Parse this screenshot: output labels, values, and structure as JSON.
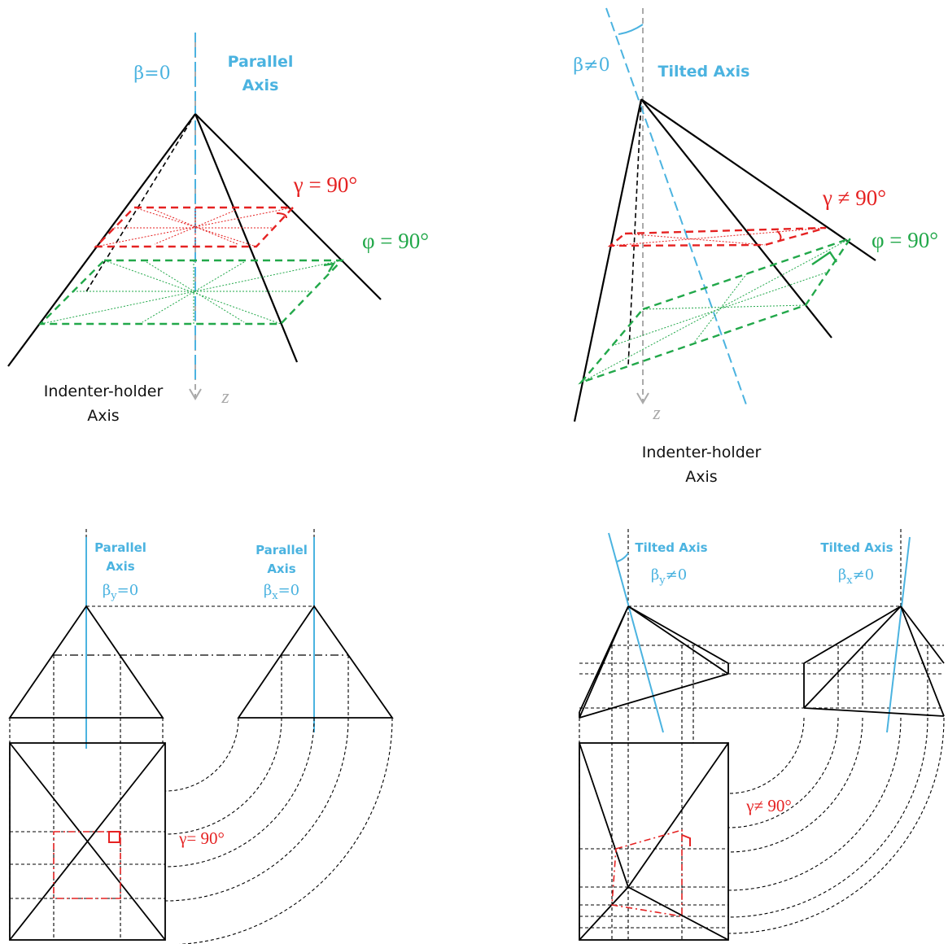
{
  "panels": {
    "top_left": {
      "beta": "β=0",
      "axis_label": [
        "Parallel",
        "Axis"
      ],
      "gamma": "γ = 90°",
      "phi": "φ = 90°",
      "z": "z",
      "holder_label": [
        "Indenter-holder",
        "Axis"
      ]
    },
    "top_right": {
      "beta": "β≠0",
      "axis_label": "Tilted Axis",
      "gamma": "γ ≠ 90°",
      "phi": "φ = 90°",
      "z": "z",
      "holder_label": [
        "Indenter-holder",
        "Axis"
      ]
    },
    "bottom_left": {
      "views": [
        {
          "axis_label": [
            "Parallel",
            "Axis"
          ],
          "beta": {
            "symbol": "β",
            "sub": "y",
            "rest": "=0"
          }
        },
        {
          "axis_label": [
            "Parallel",
            "Axis"
          ],
          "beta": {
            "symbol": "β",
            "sub": "x",
            "rest": "=0"
          }
        }
      ],
      "gamma": "γ= 90°"
    },
    "bottom_right": {
      "views": [
        {
          "axis_label": "Tilted Axis",
          "beta": {
            "symbol": "β",
            "sub": "y",
            "rest": "≠0"
          }
        },
        {
          "axis_label": "Tilted Axis",
          "beta": {
            "symbol": "β",
            "sub": "x",
            "rest": "≠0"
          }
        }
      ],
      "gamma": "γ≠ 90°"
    }
  }
}
